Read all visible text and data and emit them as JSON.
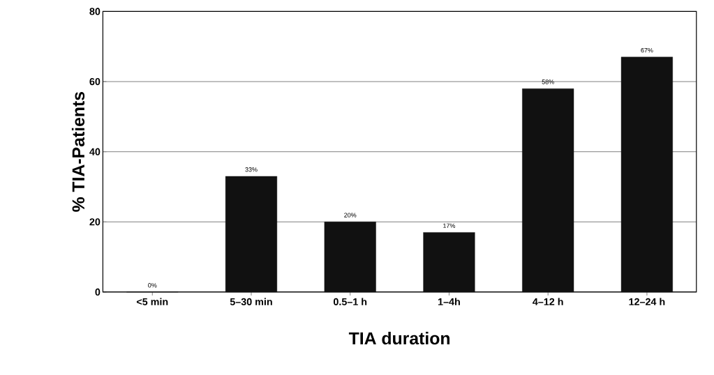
{
  "chart_data": {
    "type": "bar",
    "xlabel": "TIA duration",
    "ylabel": "% TIA-Patients",
    "categories": [
      "<5 min",
      "5–30 min",
      "0.5–1 h",
      "1–4h",
      "4–12 h",
      "12–24 h"
    ],
    "values": [
      0,
      33,
      20,
      17,
      58,
      67
    ],
    "value_labels": [
      "0%",
      "33%",
      "20%",
      "17%",
      "58%",
      "67%"
    ],
    "color": "#111111",
    "ylim": [
      0,
      80
    ],
    "yticks": [
      0,
      20,
      40,
      60,
      80
    ],
    "grid": "y"
  }
}
